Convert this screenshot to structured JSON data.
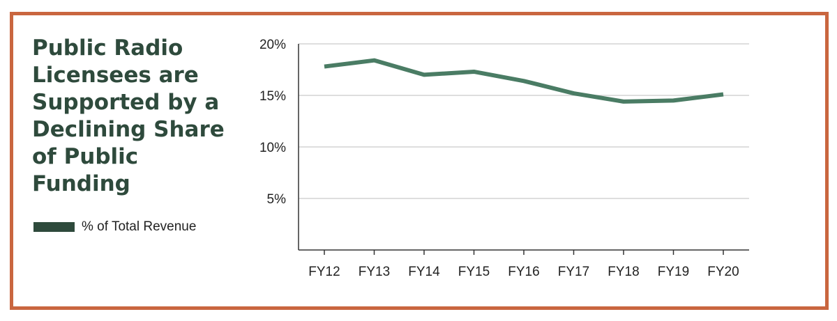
{
  "colors": {
    "frame": "#c9663f",
    "title": "#2e4a3c",
    "legend_swatch": "#2e4a3c",
    "line": "#4a7c64",
    "grid": "#d4d4d4",
    "axis": "#333333"
  },
  "legend": {
    "label": "% of Total Revenue"
  },
  "chart_data": {
    "type": "line",
    "title": "Public Radio Licensees are Supported by a Declining Share of Public Funding",
    "xlabel": "",
    "ylabel": "",
    "categories": [
      "FY12",
      "FY13",
      "FY14",
      "FY15",
      "FY16",
      "FY17",
      "FY18",
      "FY19",
      "FY20"
    ],
    "series": [
      {
        "name": "% of Total Revenue",
        "values": [
          17.8,
          18.4,
          17.0,
          17.3,
          16.4,
          15.2,
          14.4,
          14.5,
          15.1
        ]
      }
    ],
    "ylim": [
      0,
      20
    ],
    "yticks": [
      5,
      10,
      15,
      20
    ],
    "ytick_labels": [
      "5%",
      "10%",
      "15%",
      "20%"
    ],
    "grid": true,
    "legend_position": "left"
  }
}
